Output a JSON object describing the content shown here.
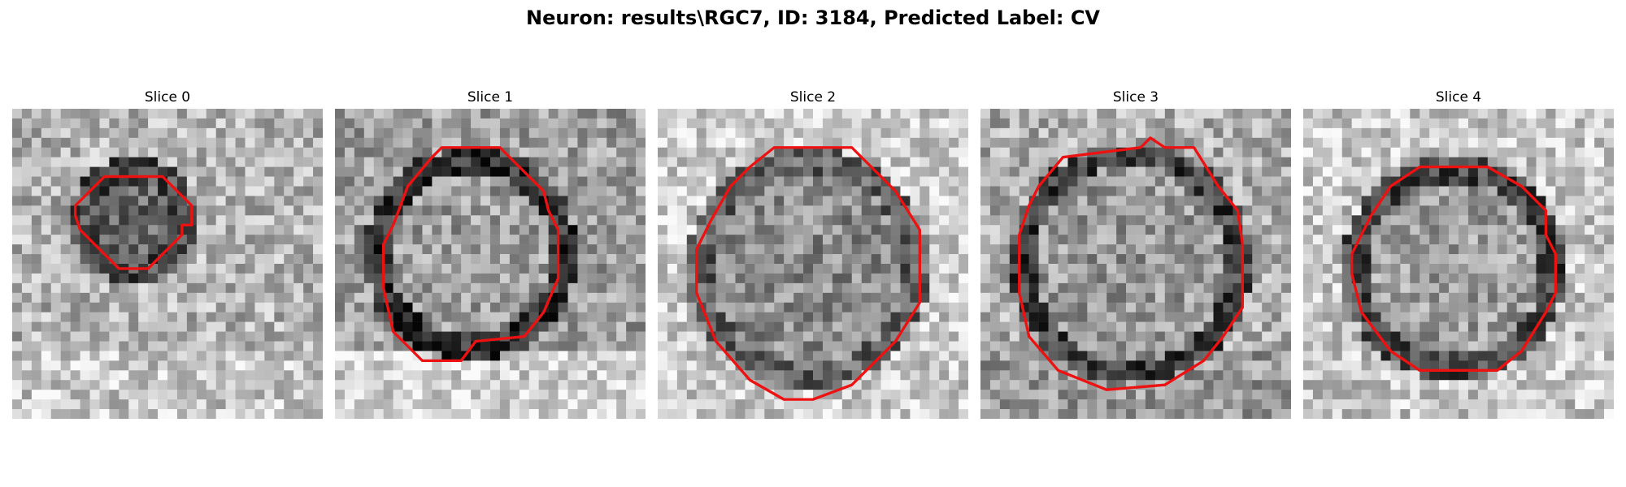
{
  "figure": {
    "title": "Neuron: results\\RGC7, ID: 3184, Predicted Label: CV"
  },
  "contour_color": "#ee1111",
  "colormap": "grayscale",
  "panels": [
    {
      "label": "Slice 0"
    },
    {
      "label": "Slice 1"
    },
    {
      "label": "Slice 2"
    },
    {
      "label": "Slice 3"
    },
    {
      "label": "Slice 4"
    }
  ]
}
